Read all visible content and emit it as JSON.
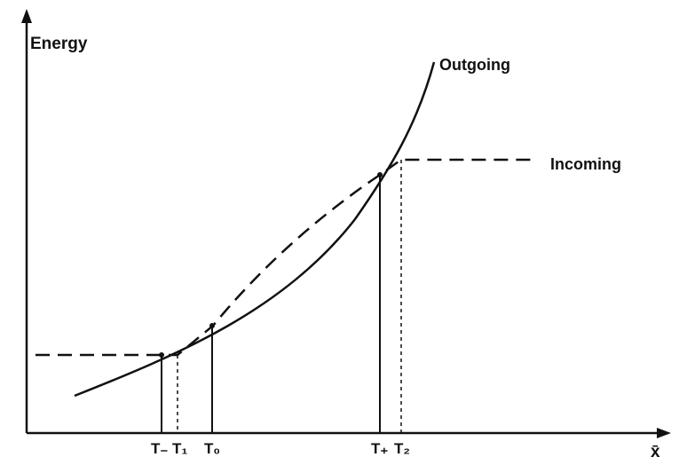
{
  "axes": {
    "y_label": "Energy",
    "x_label": "x̄"
  },
  "curves": {
    "outgoing_label": "Outgoing",
    "incoming_label": "Incoming"
  },
  "ticks": [
    {
      "key": "t_minus",
      "label": "T₋"
    },
    {
      "key": "t_1",
      "label": "T₁"
    },
    {
      "key": "t_0",
      "label": "T₀"
    },
    {
      "key": "t_plus",
      "label": "T₊"
    },
    {
      "key": "t_2",
      "label": "T₂"
    }
  ],
  "colors": {
    "ink": "#111111",
    "background": "#ffffff"
  }
}
